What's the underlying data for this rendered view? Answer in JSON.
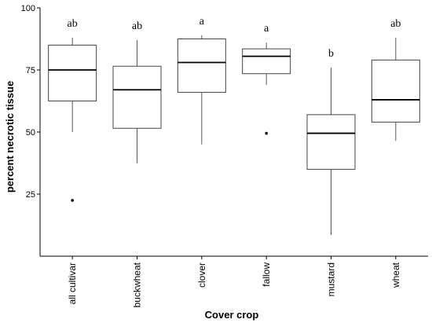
{
  "chart_data": {
    "type": "boxplot",
    "xlabel": "Cover crop",
    "ylabel": "percent necrotic tissue",
    "ylim": [
      0,
      100
    ],
    "yticks": [
      25,
      50,
      75,
      100
    ],
    "grid": false,
    "categories": [
      "all cultivar",
      "buckwheat",
      "clover",
      "fallow",
      "mustard",
      "wheat"
    ],
    "boxes": [
      {
        "category": "all cultivar",
        "letter": "ab",
        "whisker_low": 50,
        "q1": 62.5,
        "median": 75,
        "q3": 85,
        "whisker_high": 88,
        "outliers": [
          22.5
        ]
      },
      {
        "category": "buckwheat",
        "letter": "ab",
        "whisker_low": 37.5,
        "q1": 51.5,
        "median": 67,
        "q3": 76.5,
        "whisker_high": 87,
        "outliers": []
      },
      {
        "category": "clover",
        "letter": "a",
        "whisker_low": 45,
        "q1": 66,
        "median": 78,
        "q3": 87.5,
        "whisker_high": 89,
        "outliers": []
      },
      {
        "category": "fallow",
        "letter": "a",
        "whisker_low": 69,
        "q1": 73.5,
        "median": 80.5,
        "q3": 83.5,
        "whisker_high": 86,
        "outliers": [
          49.5
        ]
      },
      {
        "category": "mustard",
        "letter": "b",
        "whisker_low": 8.5,
        "q1": 35,
        "median": 49.5,
        "q3": 57,
        "whisker_high": 76,
        "outliers": []
      },
      {
        "category": "wheat",
        "letter": "ab",
        "whisker_low": 46.5,
        "q1": 54,
        "median": 63,
        "q3": 79,
        "whisker_high": 88,
        "outliers": []
      }
    ]
  }
}
